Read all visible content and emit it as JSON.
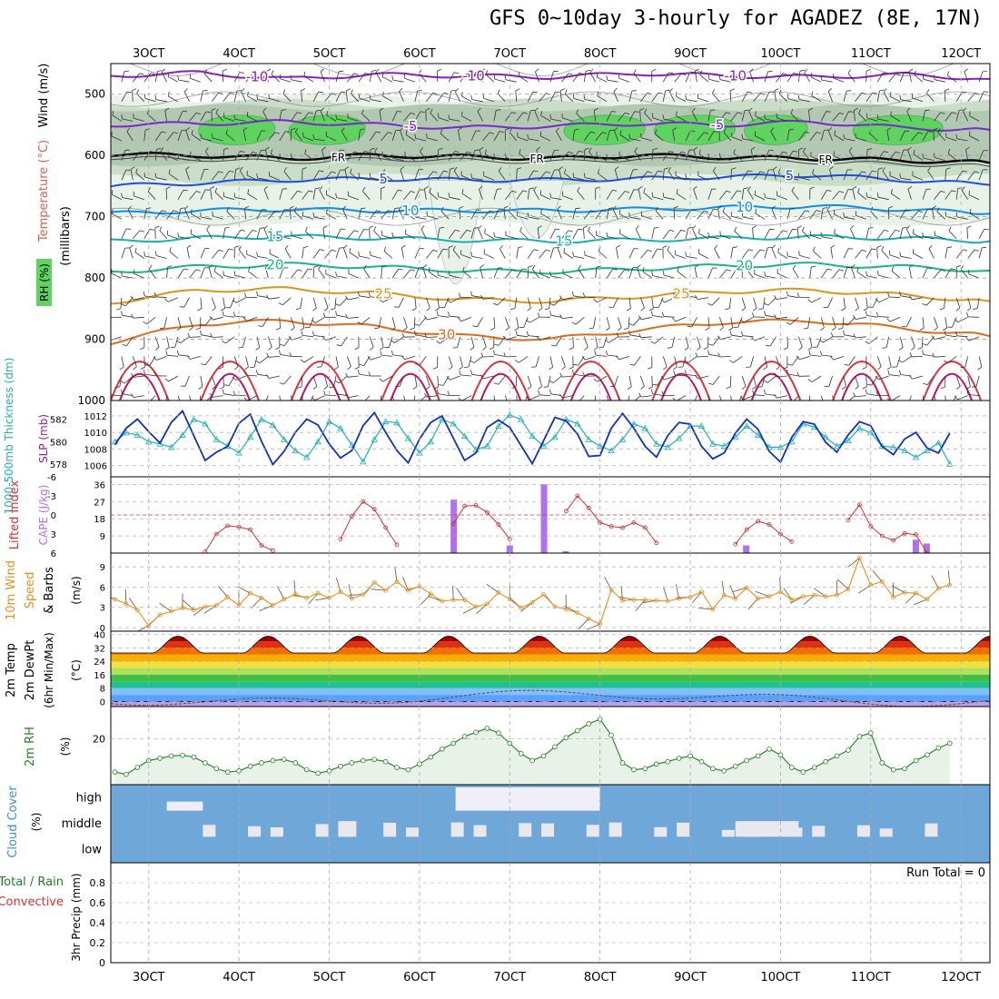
{
  "title": "GFS 0~10day 3-hourly for AGADEZ (8E, 17N)",
  "chart_data": [
    {
      "panel": "upper_air",
      "type": "contour",
      "ylabel_parts": [
        "Wind (m/s)",
        "Temperature (°C)",
        "RH (%)",
        "(millibars)"
      ],
      "ylim": [
        1000,
        450
      ],
      "yticks": [
        500,
        600,
        700,
        800,
        900,
        1000
      ],
      "xticks": [
        "3OCT",
        "4OCT",
        "5OCT",
        "6OCT",
        "7OCT",
        "8OCT",
        "9OCT",
        "10OCT",
        "11OCT",
        "12OCT"
      ],
      "x_days": [
        3,
        4,
        5,
        6,
        7,
        8,
        9,
        10,
        11,
        12
      ],
      "x_range_days": [
        2.58,
        12.32
      ],
      "temp_isotherms": [
        {
          "label": "-10",
          "levels": [
            470,
            465,
            475,
            468,
            470,
            472,
            466,
            470,
            472,
            468,
            475
          ]
        },
        {
          "label": "-5",
          "levels": [
            550,
            548,
            545,
            550,
            555,
            552,
            548,
            550,
            545,
            555,
            558
          ]
        },
        {
          "label": "FR",
          "levels": [
            598,
            600,
            605,
            600,
            602,
            605,
            600,
            603,
            605,
            608,
            612
          ]
        },
        {
          "label": "5",
          "levels": [
            650,
            645,
            640,
            638,
            640,
            640,
            638,
            635,
            632,
            640,
            648
          ]
        },
        {
          "label": "10",
          "levels": [
            695,
            690,
            688,
            690,
            690,
            690,
            688,
            685,
            683,
            688,
            695
          ]
        },
        {
          "label": "15",
          "levels": [
            740,
            735,
            732,
            735,
            738,
            740,
            738,
            735,
            733,
            735,
            740
          ]
        },
        {
          "label": "20",
          "levels": [
            790,
            782,
            778,
            782,
            788,
            790,
            785,
            780,
            778,
            782,
            788
          ]
        },
        {
          "label": "25",
          "levels": [
            840,
            820,
            818,
            825,
            835,
            838,
            830,
            822,
            820,
            828,
            838
          ]
        },
        {
          "label": "30",
          "levels": [
            905,
            875,
            870,
            880,
            895,
            900,
            885,
            872,
            870,
            882,
            895
          ]
        }
      ]
    },
    {
      "panel": "thickness_slp",
      "type": "line",
      "ylabel_left": "1000-500mb Thickness (dm)",
      "ylabel_right": "SLP (mb)",
      "yticks_left": [
        578,
        580,
        582
      ],
      "yticks_right": [
        1006,
        1008,
        1010,
        1012
      ],
      "series": [
        {
          "name": "Thickness",
          "color": "#20b0b0",
          "values": [
            580.0,
            580.8,
            580.6,
            580.0,
            579.8,
            579.5,
            580.6,
            582.0,
            581.6,
            580.2,
            579.6,
            579.0,
            580.4,
            582.0,
            581.5,
            580.2,
            579.2,
            578.6,
            580.0,
            581.8,
            581.2,
            579.7,
            578.2,
            580.2,
            581.8,
            581.7,
            580.3,
            579.0,
            580.0,
            582.0,
            581.6,
            580.5,
            579.3,
            579.6,
            581.4,
            582.4,
            582.0,
            580.5,
            579.6,
            580.4,
            582.0,
            581.6,
            580.2,
            579.6,
            579.2,
            580.2,
            581.6,
            581.2,
            579.8,
            579.5,
            580.3,
            581.4,
            581.4,
            579.8,
            579.6,
            580.4,
            581.4,
            580.6,
            579.5,
            579.5,
            580.0,
            581.6,
            581.3,
            580.4,
            579.6,
            580.1,
            581.2,
            580.8,
            579.6,
            579.5,
            579.2,
            578.6,
            579.2,
            579.9,
            578.0
          ]
        },
        {
          "name": "SLP",
          "color": "#1030c0",
          "values": [
            1008.5,
            1010.5,
            1011.6,
            1010.1,
            1008.7,
            1011.2,
            1012.6,
            1009.6,
            1006.6,
            1007.6,
            1008.3,
            1011.1,
            1012.2,
            1008.9,
            1006.1,
            1007.7,
            1010.0,
            1011.6,
            1010.9,
            1008.6,
            1006.9,
            1007.8,
            1010.8,
            1012.4,
            1010.0,
            1007.8,
            1006.3,
            1009.2,
            1011.2,
            1012.0,
            1009.3,
            1006.6,
            1007.5,
            1010.6,
            1011.5,
            1010.6,
            1008.4,
            1006.2,
            1009.0,
            1011.8,
            1011.4,
            1009.8,
            1007.1,
            1007.2,
            1010.5,
            1012.3,
            1010.5,
            1008.3,
            1007.0,
            1009.6,
            1011.2,
            1011.0,
            1008.3,
            1006.8,
            1007.5,
            1009.9,
            1011.6,
            1010.4,
            1007.7,
            1006.4,
            1009.4,
            1011.3,
            1011.0,
            1008.8,
            1007.6,
            1009.7,
            1011.3,
            1010.8,
            1008.3,
            1007.3,
            1009.2,
            1010.0,
            1008.1,
            1007.5,
            1009.9
          ]
        }
      ]
    },
    {
      "panel": "lifted_cape",
      "type": "line+bar",
      "ylabel_left": "Lifted Index",
      "ylabel_right": "CAPE (J/kg)",
      "yticks_left": [
        -6,
        -3,
        0,
        3,
        6
      ],
      "yticks_right": [
        9,
        18,
        27,
        36
      ],
      "lifted_index": [
        null,
        null,
        null,
        null,
        null,
        null,
        null,
        null,
        5.8,
        3.0,
        1.7,
        1.9,
        2.3,
        4.8,
        5.6,
        null,
        null,
        null,
        null,
        null,
        3.8,
        0.2,
        -2.1,
        -0.9,
        2.0,
        4.7,
        null,
        null,
        null,
        null,
        1.4,
        -1.4,
        -1.5,
        -0.4,
        1.5,
        3.8,
        null,
        null,
        null,
        null,
        -0.6,
        -3.0,
        -1.1,
        1.2,
        1.8,
        2.0,
        1.2,
        2.0,
        4.4,
        null,
        null,
        null,
        null,
        null,
        null,
        4.6,
        2.3,
        1.0,
        1.5,
        3.0,
        4.2,
        null,
        null,
        null,
        null,
        0.8,
        -1.6,
        1.8,
        3.3,
        4.0,
        2.9,
        3.1,
        6.0
      ],
      "cape_bars": [
        {
          "day": 6.38,
          "value": 28
        },
        {
          "day": 7.0,
          "value": 4
        },
        {
          "day": 7.38,
          "value": 36
        },
        {
          "day": 7.62,
          "value": 1
        },
        {
          "day": 9.62,
          "value": 4
        },
        {
          "day": 11.5,
          "value": 7
        },
        {
          "day": 11.62,
          "value": 5
        }
      ]
    },
    {
      "panel": "wind10m",
      "type": "line",
      "ylabel": "10m Wind Speed & Barbs (m/s)",
      "yticks": [
        0,
        3,
        6,
        9
      ],
      "ylim": [
        0,
        10.5
      ],
      "values": [
        4.2,
        3.5,
        2.6,
        0.3,
        1.9,
        2.4,
        2.9,
        2.6,
        3.1,
        3.3,
        4.5,
        3.3,
        5.1,
        4.4,
        3.3,
        4.2,
        4.9,
        4.4,
        5.1,
        4.4,
        5.3,
        4.3,
        4.9,
        6.7,
        5.5,
        6.8,
        5.5,
        6.1,
        5.0,
        3.9,
        4.1,
        4.1,
        3.1,
        3.5,
        5.2,
        4.2,
        2.9,
        3.7,
        4.9,
        3.1,
        2.7,
        2.2,
        1.3,
        0.5,
        5.6,
        4.0,
        4.1,
        4.1,
        4.0,
        3.9,
        4.3,
        4.5,
        5.3,
        2.7,
        4.8,
        4.3,
        5.9,
        4.3,
        4.6,
        5.3,
        4.1,
        4.6,
        4.8,
        4.6,
        4.8,
        5.7,
        10.3,
        6.3,
        6.8,
        4.5,
        5.2,
        5.1,
        4.2,
        5.8,
        6.3
      ]
    },
    {
      "panel": "temp2m",
      "type": "area",
      "ylabel": "2m Temp 2m DewPt (6hr Min/Max) (°C)",
      "yticks": [
        0,
        8,
        16,
        24,
        32,
        40
      ],
      "ylim": [
        -3,
        42
      ],
      "temperature_summary": {
        "daily_min": 29,
        "daily_max": 39
      },
      "dewpoint_summary": {
        "min": -2,
        "max": 10
      }
    },
    {
      "panel": "rh2m",
      "type": "line",
      "ylabel": "2m RH (%)",
      "yticks": [
        20
      ],
      "ylim": [
        0,
        34
      ],
      "values": [
        5.5,
        4.5,
        7.5,
        10.5,
        11.5,
        12.5,
        12.8,
        12.0,
        9.5,
        7.0,
        5.5,
        6.0,
        8.0,
        9.5,
        10.5,
        11.0,
        9.5,
        6.5,
        5.0,
        6.0,
        8.0,
        9.5,
        10.5,
        11.0,
        10.0,
        7.5,
        6.5,
        9.0,
        12.0,
        15.5,
        18.0,
        21.0,
        22.8,
        24.5,
        22.5,
        18.0,
        13.5,
        10.5,
        12.5,
        16.5,
        20.5,
        23.5,
        26.5,
        28.5,
        21.5,
        9.5,
        6.5,
        7.0,
        9.0,
        10.0,
        11.5,
        12.5,
        10.0,
        7.0,
        6.0,
        8.0,
        10.5,
        12.5,
        15.5,
        13.0,
        7.5,
        5.5,
        7.5,
        10.0,
        12.5,
        15.0,
        21.0,
        22.5,
        9.5,
        6.5,
        7.0,
        10.5,
        13.0,
        16.0,
        18.0
      ]
    },
    {
      "panel": "cloud_cover",
      "type": "area",
      "ylabel": "Cloud Cover (%)",
      "yticks": [
        "high",
        "middle",
        "low"
      ],
      "high_cloud_segments": [
        {
          "from_day": 3.2,
          "to_day": 3.6,
          "level": "partial"
        },
        {
          "from_day": 6.4,
          "to_day": 8.0,
          "level": "thick"
        }
      ],
      "middle_cloud_segments": [
        {
          "from_day": 5.1,
          "to_day": 5.3
        },
        {
          "from_day": 9.5,
          "to_day": 10.2
        }
      ]
    },
    {
      "panel": "precip",
      "type": "bar",
      "ylabel": "3hr Precip (mm)",
      "series_labels": [
        "Total / Rain",
        "Convective"
      ],
      "yticks": [
        0,
        0.2,
        0.4,
        0.6,
        0.8
      ],
      "ylim": [
        0,
        1
      ],
      "annotation": "Run Total = 0",
      "values": []
    }
  ]
}
